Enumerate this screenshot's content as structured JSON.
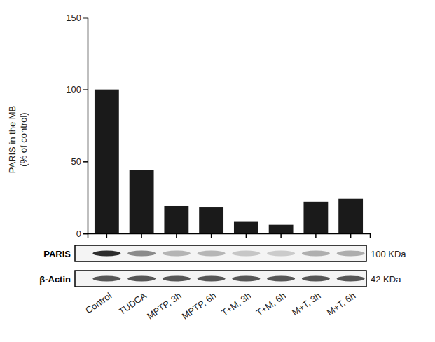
{
  "chart_data": {
    "type": "bar",
    "y_label": [
      "PARIS in the MB",
      "(% of control)"
    ],
    "categories": [
      "Control",
      "TUDCA",
      "MPTP, 3h",
      "MPTP, 6h",
      "T+M, 3h",
      "T+M, 6h",
      "M+T, 3h",
      "M+T, 6h"
    ],
    "values": [
      100,
      44,
      19,
      18,
      8,
      6,
      22,
      24
    ],
    "color": "#1a1a1a",
    "ylim": [
      0,
      150
    ],
    "yticks": [
      0,
      50,
      100,
      150
    ],
    "grid": false,
    "blot": [
      {
        "label": "PARIS",
        "size": "100 KDa"
      },
      {
        "label": "β-Actin",
        "size": "42 KDa"
      }
    ]
  }
}
